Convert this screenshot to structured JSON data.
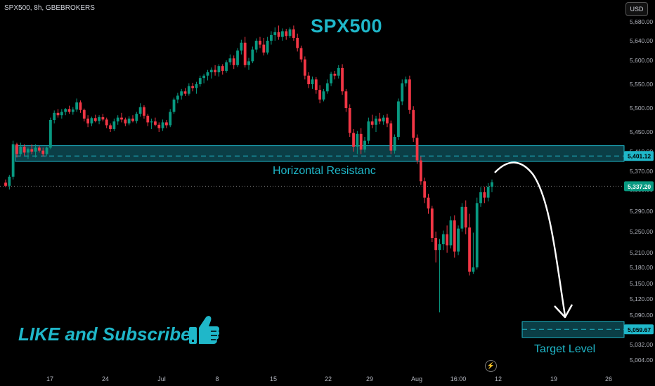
{
  "header": {
    "symbol": "SPX500, 8h, GBEBROKERS",
    "currency": "USD"
  },
  "annotations": {
    "title": "SPX500",
    "resistance_label": "Horizontal Resistanc",
    "target_label": "Target Level",
    "promo_text": "LIKE and Subscribe",
    "promo_icon": "thumbs-up-icon"
  },
  "colors": {
    "up": "#089981",
    "down": "#f23645",
    "accent": "#1fb7c9",
    "zone_fill": "#0b3e46"
  },
  "chart_data": {
    "type": "candlestick",
    "title": "SPX500",
    "ylim": [
      4995,
      5710
    ],
    "y_ticks": [
      "5,680.00",
      "5,640.00",
      "5,600.00",
      "5,550.00",
      "5,500.00",
      "5,450.00",
      "5,410.00",
      "5,370.00",
      "5,330.00",
      "5,290.00",
      "5,250.00",
      "5,210.00",
      "5,180.00",
      "5,150.00",
      "5,120.00",
      "5,090.00",
      "5,060.00",
      "5,032.00",
      "5,004.00"
    ],
    "x_ticks": [
      "17",
      "24",
      "Jul",
      "8",
      "15",
      "22",
      "29",
      "Aug",
      "16:00",
      "12",
      "19",
      "26"
    ],
    "last_price": "5,337.20",
    "resistance_zone": {
      "low": 5390,
      "high": 5422,
      "level": "5,401.12"
    },
    "target_zone": {
      "low": 5045,
      "high": 5076,
      "level": "5,059.67"
    },
    "projection": {
      "from": "5,370 (Aug 12)",
      "to": "5,090 (Aug 20)"
    },
    "candles": [
      [
        5345,
        5352,
        5335,
        5338
      ],
      [
        5338,
        5362,
        5330,
        5358
      ],
      [
        5358,
        5432,
        5352,
        5425
      ],
      [
        5425,
        5428,
        5398,
        5405
      ],
      [
        5405,
        5428,
        5400,
        5420
      ],
      [
        5420,
        5425,
        5402,
        5408
      ],
      [
        5408,
        5418,
        5395,
        5415
      ],
      [
        5415,
        5425,
        5405,
        5410
      ],
      [
        5410,
        5425,
        5398,
        5418
      ],
      [
        5418,
        5422,
        5408,
        5412
      ],
      [
        5412,
        5418,
        5400,
        5405
      ],
      [
        5405,
        5420,
        5400,
        5418
      ],
      [
        5418,
        5480,
        5415,
        5475
      ],
      [
        5475,
        5495,
        5468,
        5490
      ],
      [
        5490,
        5498,
        5480,
        5485
      ],
      [
        5485,
        5498,
        5478,
        5492
      ],
      [
        5492,
        5500,
        5485,
        5498
      ],
      [
        5498,
        5505,
        5488,
        5492
      ],
      [
        5492,
        5502,
        5486,
        5497
      ],
      [
        5497,
        5520,
        5492,
        5512
      ],
      [
        5512,
        5516,
        5490,
        5496
      ],
      [
        5496,
        5499,
        5472,
        5478
      ],
      [
        5478,
        5485,
        5460,
        5468
      ],
      [
        5468,
        5482,
        5462,
        5479
      ],
      [
        5479,
        5486,
        5470,
        5473
      ],
      [
        5473,
        5485,
        5466,
        5481
      ],
      [
        5481,
        5488,
        5472,
        5476
      ],
      [
        5476,
        5480,
        5458,
        5464
      ],
      [
        5464,
        5468,
        5450,
        5456
      ],
      [
        5456,
        5478,
        5452,
        5472
      ],
      [
        5472,
        5485,
        5465,
        5480
      ],
      [
        5480,
        5490,
        5470,
        5476
      ],
      [
        5476,
        5480,
        5462,
        5468
      ],
      [
        5468,
        5483,
        5464,
        5478
      ],
      [
        5478,
        5485,
        5470,
        5473
      ],
      [
        5473,
        5492,
        5468,
        5488
      ],
      [
        5488,
        5510,
        5482,
        5502
      ],
      [
        5502,
        5506,
        5478,
        5484
      ],
      [
        5484,
        5488,
        5462,
        5470
      ],
      [
        5470,
        5478,
        5456,
        5472
      ],
      [
        5472,
        5480,
        5462,
        5465
      ],
      [
        5465,
        5470,
        5450,
        5458
      ],
      [
        5458,
        5476,
        5452,
        5470
      ],
      [
        5470,
        5475,
        5458,
        5464
      ],
      [
        5464,
        5498,
        5460,
        5492
      ],
      [
        5492,
        5522,
        5488,
        5518
      ],
      [
        5518,
        5532,
        5510,
        5526
      ],
      [
        5526,
        5540,
        5518,
        5535
      ],
      [
        5535,
        5542,
        5525,
        5530
      ],
      [
        5530,
        5552,
        5526,
        5546
      ],
      [
        5546,
        5553,
        5535,
        5542
      ],
      [
        5542,
        5555,
        5530,
        5550
      ],
      [
        5550,
        5568,
        5545,
        5563
      ],
      [
        5563,
        5572,
        5552,
        5568
      ],
      [
        5568,
        5580,
        5558,
        5575
      ],
      [
        5575,
        5585,
        5562,
        5580
      ],
      [
        5580,
        5590,
        5568,
        5575
      ],
      [
        5575,
        5592,
        5566,
        5588
      ],
      [
        5588,
        5592,
        5570,
        5578
      ],
      [
        5578,
        5600,
        5574,
        5596
      ],
      [
        5596,
        5612,
        5590,
        5604
      ],
      [
        5604,
        5610,
        5582,
        5590
      ],
      [
        5590,
        5625,
        5586,
        5620
      ],
      [
        5620,
        5642,
        5612,
        5636
      ],
      [
        5636,
        5648,
        5585,
        5590
      ],
      [
        5590,
        5605,
        5580,
        5598
      ],
      [
        5598,
        5628,
        5594,
        5622
      ],
      [
        5622,
        5645,
        5616,
        5640
      ],
      [
        5640,
        5648,
        5625,
        5632
      ],
      [
        5632,
        5646,
        5610,
        5616
      ],
      [
        5616,
        5648,
        5612,
        5640
      ],
      [
        5640,
        5660,
        5632,
        5652
      ],
      [
        5652,
        5668,
        5640,
        5658
      ],
      [
        5658,
        5672,
        5642,
        5648
      ],
      [
        5648,
        5666,
        5640,
        5660
      ],
      [
        5660,
        5665,
        5642,
        5650
      ],
      [
        5650,
        5668,
        5646,
        5664
      ],
      [
        5664,
        5672,
        5640,
        5646
      ],
      [
        5646,
        5655,
        5618,
        5625
      ],
      [
        5625,
        5630,
        5596,
        5602
      ],
      [
        5602,
        5608,
        5560,
        5568
      ],
      [
        5568,
        5575,
        5542,
        5550
      ],
      [
        5550,
        5566,
        5540,
        5560
      ],
      [
        5560,
        5565,
        5530,
        5538
      ],
      [
        5538,
        5548,
        5510,
        5518
      ],
      [
        5518,
        5540,
        5514,
        5535
      ],
      [
        5535,
        5560,
        5530,
        5552
      ],
      [
        5552,
        5576,
        5546,
        5572
      ],
      [
        5572,
        5578,
        5560,
        5568
      ],
      [
        5568,
        5590,
        5562,
        5584
      ],
      [
        5584,
        5592,
        5528,
        5535
      ],
      [
        5535,
        5540,
        5492,
        5500
      ],
      [
        5500,
        5508,
        5440,
        5448
      ],
      [
        5448,
        5456,
        5410,
        5420
      ],
      [
        5420,
        5452,
        5405,
        5446
      ],
      [
        5446,
        5458,
        5405,
        5414
      ],
      [
        5414,
        5440,
        5408,
        5432
      ],
      [
        5432,
        5480,
        5426,
        5472
      ],
      [
        5472,
        5486,
        5458,
        5465
      ],
      [
        5465,
        5484,
        5450,
        5478
      ],
      [
        5478,
        5490,
        5466,
        5472
      ],
      [
        5472,
        5485,
        5465,
        5480
      ],
      [
        5480,
        5488,
        5460,
        5468
      ],
      [
        5468,
        5474,
        5405,
        5412
      ],
      [
        5412,
        5445,
        5406,
        5440
      ],
      [
        5440,
        5520,
        5434,
        5514
      ],
      [
        5514,
        5560,
        5506,
        5552
      ],
      [
        5552,
        5566,
        5545,
        5560
      ],
      [
        5560,
        5568,
        5488,
        5496
      ],
      [
        5496,
        5504,
        5430,
        5438
      ],
      [
        5438,
        5445,
        5385,
        5392
      ],
      [
        5392,
        5400,
        5340,
        5348
      ],
      [
        5348,
        5356,
        5305,
        5315
      ],
      [
        5315,
        5322,
        5285,
        5295
      ],
      [
        5295,
        5300,
        5230,
        5238
      ],
      [
        5238,
        5250,
        5190,
        5215
      ],
      [
        5215,
        5236,
        5095,
        5226
      ],
      [
        5226,
        5252,
        5215,
        5245
      ],
      [
        5245,
        5262,
        5210,
        5224
      ],
      [
        5224,
        5280,
        5218,
        5272
      ],
      [
        5272,
        5282,
        5200,
        5212
      ],
      [
        5212,
        5262,
        5205,
        5256
      ],
      [
        5256,
        5305,
        5250,
        5298
      ],
      [
        5298,
        5310,
        5245,
        5258
      ],
      [
        5258,
        5285,
        5165,
        5172
      ],
      [
        5172,
        5248,
        5168,
        5180
      ],
      [
        5180,
        5315,
        5176,
        5305
      ],
      [
        5305,
        5335,
        5298,
        5325
      ],
      [
        5325,
        5336,
        5305,
        5315
      ],
      [
        5315,
        5344,
        5308,
        5336
      ],
      [
        5336,
        5352,
        5325,
        5346
      ]
    ]
  }
}
